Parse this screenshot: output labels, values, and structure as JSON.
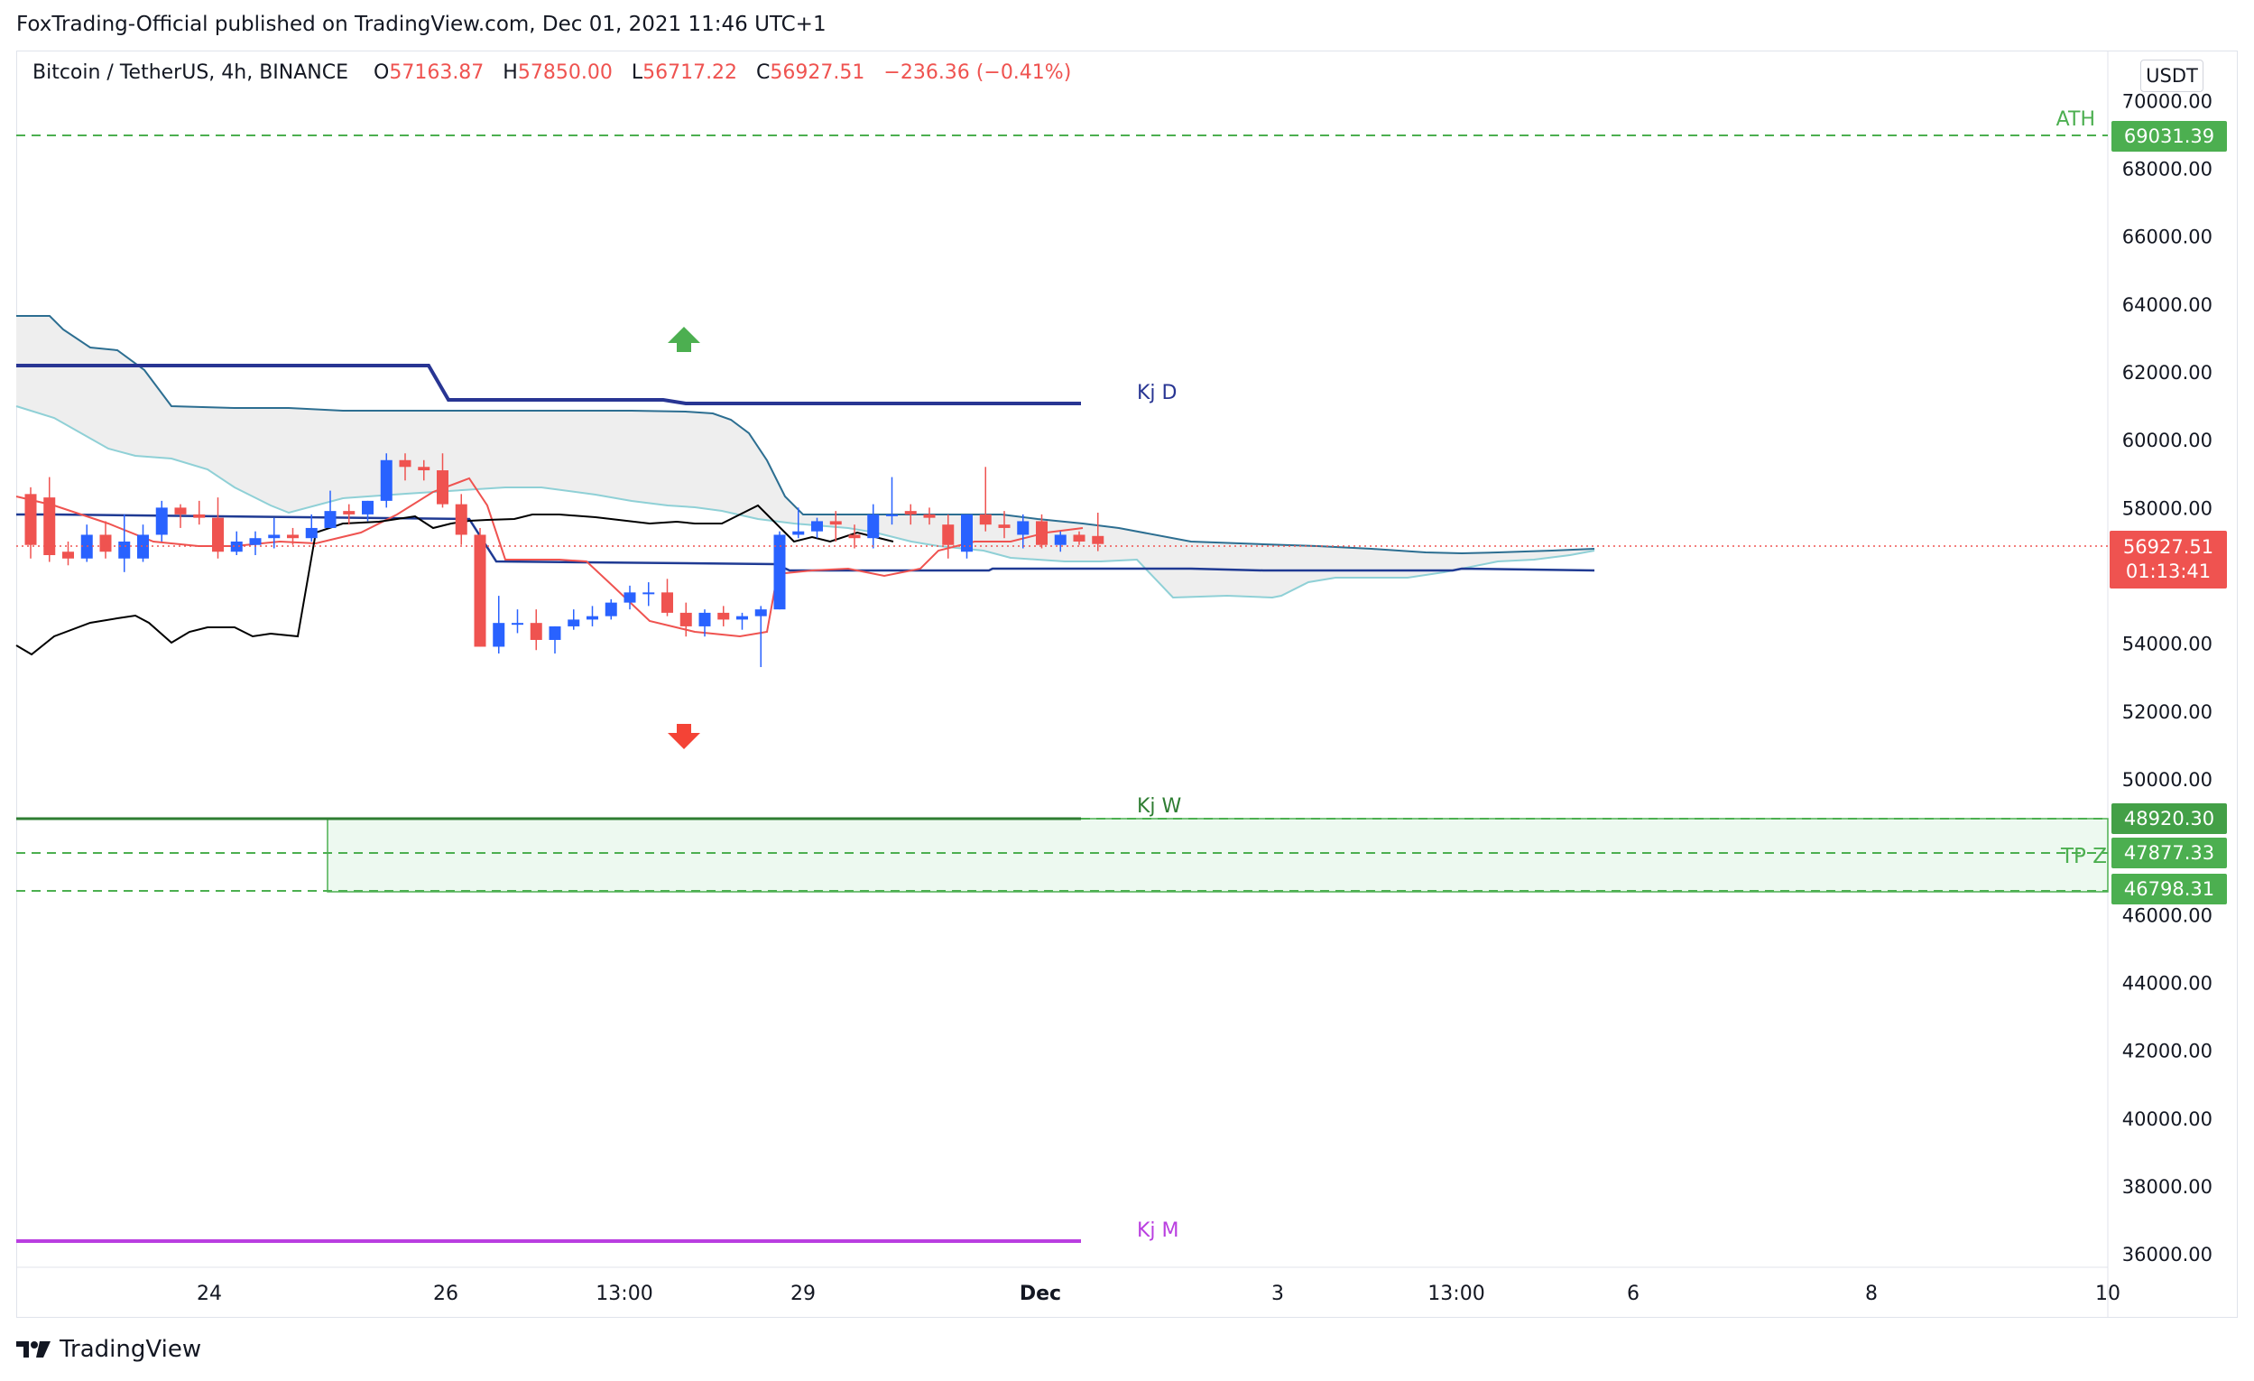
{
  "header": {
    "published": "FoxTrading-Official published on TradingView.com, Dec 01, 2021 11:46 UTC+1"
  },
  "legend": {
    "symbol": "Bitcoin / TetherUS, 4h, BINANCE",
    "o_label": "O",
    "o_value": "57163.87",
    "h_label": "H",
    "h_value": "57850.00",
    "l_label": "L",
    "l_value": "56717.22",
    "c_label": "C",
    "c_value": "56927.51",
    "change": "−236.36 (−0.41%)"
  },
  "currency_button": "USDT",
  "brand": "TradingView",
  "colors": {
    "up": "#2962ff",
    "down": "#ef5350",
    "green_level": "#4caf50",
    "dark_green_line": "#2e7d32",
    "purple_line": "#b93ee0",
    "kijun_d": "#283593",
    "kijun": "#1f3a93",
    "tenkan": "#ef5350",
    "chikou": "#000000",
    "cloud_fill": "#eeeeee",
    "cloud_edge_dark": "#2c6e91",
    "cloud_edge_light": "#8fd0d6"
  },
  "icons": {
    "up_arrow": "arrow-up-icon",
    "down_arrow": "arrow-down-icon"
  },
  "chart_data": {
    "type": "candlestick",
    "x_ticks": [
      "24",
      "26",
      "13:00",
      "29",
      "Dec",
      "3",
      "13:00",
      "6",
      "8",
      "10"
    ],
    "y_ticks": [
      "70000.00",
      "68000.00",
      "66000.00",
      "64000.00",
      "62000.00",
      "60000.00",
      "58000.00",
      "54000.00",
      "52000.00",
      "50000.00",
      "46000.00",
      "44000.00",
      "42000.00",
      "40000.00",
      "38000.00",
      "36000.00"
    ],
    "ylim": [
      35900,
      71500
    ],
    "last_price": {
      "value": "56927.51",
      "countdown": "01:13:41"
    },
    "levels": [
      {
        "label": "ATH",
        "price": 69031.39,
        "price_label": "69031.39",
        "style": "dashed"
      },
      {
        "label": "Kj W",
        "price": 48920.3,
        "price_label": "48920.30",
        "style": "solid"
      },
      {
        "label": "TP Z",
        "price": 47877.33,
        "price_label": "47877.33",
        "style": "dashed"
      },
      {
        "label": "",
        "price": 46798.31,
        "price_label": "46798.31",
        "style": "dashed"
      },
      {
        "label": "Kj D",
        "price": 61200,
        "price_label": "",
        "style": "solid"
      },
      {
        "label": "Kj M",
        "price": 36450,
        "price_label": "",
        "style": "solid"
      }
    ],
    "candles": [
      [
        58400,
        58600,
        56500,
        56900
      ],
      [
        58300,
        58900,
        56400,
        56600
      ],
      [
        56700,
        57000,
        56300,
        56500
      ],
      [
        56500,
        57500,
        56400,
        57200
      ],
      [
        57200,
        57600,
        56500,
        56700
      ],
      [
        56500,
        57800,
        56100,
        57000
      ],
      [
        56500,
        57500,
        56400,
        57200
      ],
      [
        57200,
        58200,
        57000,
        58000
      ],
      [
        58000,
        58100,
        57400,
        57800
      ],
      [
        57800,
        58200,
        57500,
        57700
      ],
      [
        57700,
        58300,
        56500,
        56700
      ],
      [
        56700,
        57300,
        56600,
        57000
      ],
      [
        56900,
        57300,
        56600,
        57100
      ],
      [
        57100,
        57700,
        56800,
        57200
      ],
      [
        57200,
        57400,
        56900,
        57100
      ],
      [
        57100,
        57800,
        57000,
        57400
      ],
      [
        57400,
        58500,
        57400,
        57900
      ],
      [
        57900,
        58100,
        57500,
        57800
      ],
      [
        57800,
        58200,
        57600,
        58200
      ],
      [
        58200,
        59600,
        58000,
        59400
      ],
      [
        59400,
        59600,
        58800,
        59200
      ],
      [
        59200,
        59400,
        58800,
        59100
      ],
      [
        59100,
        59600,
        58000,
        58100
      ],
      [
        58100,
        58400,
        56900,
        57200
      ],
      [
        57200,
        57400,
        53900,
        53900
      ],
      [
        53900,
        55400,
        53700,
        54600
      ],
      [
        54600,
        55000,
        54300,
        54600
      ],
      [
        54600,
        55000,
        53800,
        54100
      ],
      [
        54100,
        54500,
        53700,
        54500
      ],
      [
        54500,
        55000,
        54400,
        54700
      ],
      [
        54700,
        55100,
        54500,
        54800
      ],
      [
        54800,
        55300,
        54700,
        55200
      ],
      [
        55200,
        55700,
        55000,
        55500
      ],
      [
        55500,
        55800,
        55100,
        55500
      ],
      [
        55500,
        55900,
        54800,
        54900
      ],
      [
        54900,
        55200,
        54200,
        54500
      ],
      [
        54500,
        55000,
        54200,
        54900
      ],
      [
        54900,
        55100,
        54500,
        54700
      ],
      [
        54700,
        54900,
        54400,
        54800
      ],
      [
        54800,
        55100,
        53300,
        55000
      ],
      [
        55000,
        57300,
        55000,
        57200
      ],
      [
        57200,
        58000,
        57100,
        57300
      ],
      [
        57300,
        57700,
        57100,
        57600
      ],
      [
        57600,
        57900,
        57000,
        57500
      ],
      [
        57200,
        57500,
        56800,
        57100
      ],
      [
        57100,
        58100,
        56800,
        57800
      ],
      [
        57800,
        58900,
        57500,
        57800
      ],
      [
        57900,
        58100,
        57500,
        57800
      ],
      [
        57800,
        58000,
        57500,
        57700
      ],
      [
        57500,
        57800,
        56500,
        56900
      ],
      [
        56700,
        57800,
        56500,
        57800
      ],
      [
        57800,
        59200,
        57300,
        57500
      ],
      [
        57500,
        57900,
        57100,
        57400
      ],
      [
        57200,
        57800,
        56800,
        57600
      ],
      [
        57600,
        57800,
        56800,
        56900
      ],
      [
        56900,
        57300,
        56700,
        57200
      ],
      [
        57200,
        57300,
        56900,
        57000
      ],
      [
        57163.87,
        57850,
        56717.22,
        56927.51
      ]
    ]
  }
}
